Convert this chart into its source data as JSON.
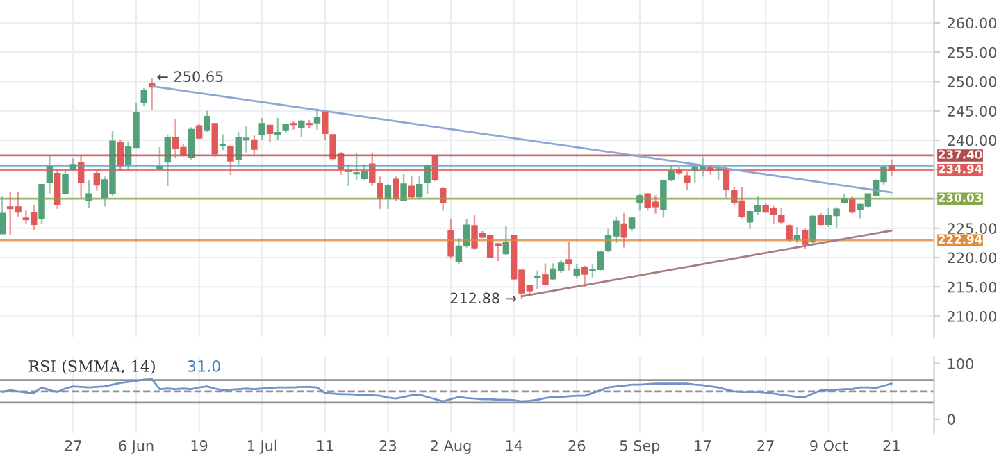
{
  "chart_data": [
    {
      "type": "candlestick",
      "categories": [
        null,
        null,
        null,
        null,
        null,
        null,
        null,
        null,
        null,
        null,
        null,
        null,
        null,
        null,
        null,
        null,
        null,
        null,
        null,
        null,
        null,
        null,
        null,
        null,
        null,
        null,
        null,
        null,
        null,
        null,
        null,
        null,
        null,
        null,
        null,
        null,
        null,
        null,
        null,
        null,
        null,
        null,
        null,
        null,
        null,
        null,
        null,
        null,
        null,
        null,
        null,
        null,
        null,
        null,
        null,
        null,
        null,
        null,
        null,
        null,
        null,
        null,
        null,
        null,
        null,
        null,
        null,
        null,
        null,
        null,
        null,
        null,
        null,
        null,
        null,
        null,
        null,
        null,
        null,
        null,
        null,
        null,
        null,
        null,
        null,
        null,
        null,
        null,
        null,
        null,
        null,
        null,
        null,
        null,
        null,
        null,
        null,
        null,
        null,
        null,
        null,
        null,
        null,
        null,
        null,
        null,
        null,
        null,
        null,
        null,
        null,
        null,
        null,
        null
      ],
      "ohlc": [
        [
          224.1,
          230.4,
          224.1,
          227.5
        ],
        [
          228.6,
          231.2,
          223.9,
          228.4
        ],
        [
          228.6,
          231.2,
          227.0,
          227.8
        ],
        [
          226.7,
          228.0,
          225.7,
          226.5
        ],
        [
          227.6,
          229.0,
          224.6,
          225.7
        ],
        [
          226.7,
          232.4,
          225.7,
          232.4
        ],
        [
          232.9,
          237.4,
          230.8,
          235.5
        ],
        [
          234.3,
          235.1,
          228.3,
          229.0
        ],
        [
          230.9,
          234.9,
          230.8,
          234.1
        ],
        [
          235.0,
          236.9,
          234.7,
          235.8
        ],
        [
          236.1,
          237.4,
          230.2,
          232.9
        ],
        [
          229.8,
          233.2,
          228.4,
          230.8
        ],
        [
          234.3,
          234.9,
          231.4,
          232.4
        ],
        [
          230.3,
          233.8,
          228.7,
          233.2
        ],
        [
          230.9,
          241.6,
          230.4,
          239.8
        ],
        [
          239.6,
          240.1,
          234.7,
          235.7
        ],
        [
          235.9,
          239.8,
          234.9,
          238.8
        ],
        [
          238.8,
          246.4,
          238.8,
          244.7
        ],
        [
          246.4,
          248.9,
          245.8,
          248.4
        ],
        [
          249.7,
          250.65,
          245.1,
          249.1
        ],
        [
          235.2,
          238.8,
          234.9,
          235.5
        ],
        [
          236.3,
          241.0,
          232.2,
          240.4
        ],
        [
          240.4,
          243.6,
          236.9,
          238.7
        ],
        [
          238.7,
          239.3,
          237.2,
          237.5
        ],
        [
          237.1,
          242.2,
          236.7,
          241.8
        ],
        [
          242.4,
          242.8,
          240.2,
          240.4
        ],
        [
          241.8,
          245.0,
          241.4,
          244.0
        ],
        [
          242.8,
          242.8,
          237.2,
          237.7
        ],
        [
          239.1,
          241.0,
          238.3,
          239.2
        ],
        [
          238.8,
          239.1,
          234.1,
          236.5
        ],
        [
          236.8,
          241.4,
          235.7,
          240.4
        ],
        [
          240.1,
          242.4,
          237.9,
          240.3
        ],
        [
          240.0,
          240.8,
          237.6,
          238.5
        ],
        [
          241.0,
          243.8,
          240.1,
          242.8
        ],
        [
          242.5,
          242.6,
          239.6,
          241.2
        ],
        [
          241.0,
          243.8,
          240.1,
          241.3
        ],
        [
          241.8,
          242.8,
          241.2,
          242.6
        ],
        [
          242.8,
          243.2,
          241.8,
          242.7
        ],
        [
          242.2,
          243.4,
          240.6,
          243.2
        ],
        [
          242.8,
          243.4,
          242.0,
          242.7
        ],
        [
          243.0,
          245.4,
          241.8,
          243.8
        ],
        [
          244.6,
          244.8,
          240.1,
          241.2
        ],
        [
          240.9,
          241.0,
          236.5,
          236.9
        ],
        [
          237.6,
          238.0,
          234.1,
          235.1
        ],
        [
          234.7,
          235.9,
          232.2,
          234.8
        ],
        [
          234.3,
          237.9,
          233.3,
          234.4
        ],
        [
          233.5,
          235.9,
          233.2,
          234.6
        ],
        [
          235.9,
          237.9,
          232.2,
          232.8
        ],
        [
          232.6,
          233.8,
          228.3,
          230.2
        ],
        [
          230.2,
          232.5,
          228.3,
          232.2
        ],
        [
          233.3,
          233.8,
          229.6,
          230.2
        ],
        [
          229.8,
          234.3,
          229.6,
          232.5
        ],
        [
          232.1,
          233.9,
          230.0,
          230.4
        ],
        [
          230.4,
          233.9,
          230.0,
          232.4
        ],
        [
          232.9,
          235.9,
          230.8,
          235.7
        ],
        [
          237.2,
          237.5,
          233.0,
          233.3
        ],
        [
          231.7,
          232.0,
          228.0,
          229.4
        ],
        [
          224.5,
          226.5,
          219.8,
          220.3
        ],
        [
          219.4,
          223.3,
          218.8,
          221.9
        ],
        [
          222.1,
          226.5,
          221.7,
          225.5
        ],
        [
          225.4,
          227.2,
          221.3,
          221.7
        ],
        [
          224.1,
          224.5,
          223.3,
          223.5
        ],
        [
          223.7,
          223.7,
          219.9,
          220.1
        ],
        [
          222.3,
          222.5,
          219.4,
          222.1
        ],
        [
          220.7,
          225.4,
          220.5,
          222.5
        ],
        [
          223.7,
          223.7,
          216.2,
          216.4
        ],
        [
          217.8,
          218.0,
          212.88,
          214.0
        ],
        [
          215.2,
          215.4,
          213.4,
          214.4
        ],
        [
          216.6,
          217.8,
          214.6,
          216.8
        ],
        [
          217.0,
          219.0,
          215.2,
          215.4
        ],
        [
          216.4,
          219.0,
          216.2,
          218.0
        ],
        [
          217.8,
          219.6,
          217.4,
          219.0
        ],
        [
          219.6,
          222.7,
          217.8,
          219.0
        ],
        [
          217.0,
          218.8,
          216.4,
          218.0
        ],
        [
          218.3,
          218.6,
          215.0,
          217.2
        ],
        [
          217.8,
          218.8,
          216.6,
          217.9
        ],
        [
          218.0,
          221.2,
          217.8,
          220.9
        ],
        [
          221.3,
          224.9,
          220.9,
          223.7
        ],
        [
          223.7,
          227.0,
          222.5,
          226.2
        ],
        [
          225.7,
          227.6,
          221.7,
          223.5
        ],
        [
          225.0,
          227.0,
          224.5,
          226.7
        ],
        [
          229.4,
          230.8,
          228.0,
          230.5
        ],
        [
          230.8,
          230.9,
          228.0,
          228.6
        ],
        [
          229.4,
          230.6,
          227.5,
          228.7
        ],
        [
          228.3,
          233.3,
          226.8,
          233.0
        ],
        [
          233.3,
          235.7,
          233.0,
          234.7
        ],
        [
          234.9,
          235.4,
          234.1,
          234.5
        ],
        [
          233.9,
          234.6,
          231.6,
          232.8
        ],
        [
          234.9,
          235.7,
          232.8,
          235.4
        ],
        [
          235.1,
          237.1,
          233.8,
          235.7
        ],
        [
          235.4,
          235.7,
          234.1,
          234.9
        ],
        [
          235.0,
          235.5,
          233.1,
          235.1
        ],
        [
          235.1,
          235.5,
          230.2,
          231.7
        ],
        [
          231.4,
          232.0,
          229.0,
          229.4
        ],
        [
          229.6,
          232.0,
          226.7,
          227.0
        ],
        [
          226.1,
          228.0,
          224.9,
          227.8
        ],
        [
          227.9,
          230.4,
          227.2,
          228.8
        ],
        [
          228.8,
          229.2,
          227.6,
          227.8
        ],
        [
          228.3,
          228.8,
          225.7,
          227.4
        ],
        [
          227.2,
          228.4,
          225.7,
          226.1
        ],
        [
          225.4,
          225.7,
          222.7,
          223.1
        ],
        [
          223.1,
          225.2,
          222.5,
          223.7
        ],
        [
          224.5,
          224.9,
          221.5,
          222.3
        ],
        [
          222.7,
          227.2,
          222.3,
          227.0
        ],
        [
          227.2,
          227.6,
          225.4,
          225.7
        ],
        [
          225.7,
          228.4,
          225.2,
          227.2
        ],
        [
          227.2,
          228.6,
          225.1,
          228.2
        ],
        [
          229.4,
          230.9,
          229.2,
          230.0
        ],
        [
          230.0,
          230.4,
          227.5,
          227.8
        ],
        [
          228.3,
          229.2,
          226.7,
          229.0
        ],
        [
          228.8,
          230.9,
          228.6,
          230.8
        ],
        [
          230.6,
          233.3,
          230.4,
          233.1
        ],
        [
          233.0,
          235.7,
          232.4,
          235.4
        ],
        [
          235.7,
          236.7,
          233.8,
          234.94
        ]
      ],
      "series": [
        {
          "type": "line",
          "color": "#8ea6d6",
          "values": [
            null,
            null,
            null,
            null,
            null,
            null,
            null,
            null,
            null,
            null,
            null,
            null,
            null,
            null,
            null,
            null,
            null,
            null,
            null,
            249.2,
            null,
            null,
            null,
            null,
            null,
            null,
            null,
            null,
            null,
            null,
            null,
            null,
            null,
            null,
            null,
            null,
            null,
            null,
            null,
            null,
            null,
            null,
            null,
            null,
            null,
            null,
            null,
            null,
            null,
            null,
            null,
            null,
            null,
            null,
            null,
            null,
            null,
            null,
            null,
            null,
            null,
            null,
            null,
            null,
            null,
            null,
            null,
            null,
            null,
            null,
            null,
            null,
            null,
            null,
            null,
            null,
            null,
            null,
            null,
            null,
            null,
            null,
            null,
            null,
            null,
            null,
            null,
            null,
            null,
            null,
            null,
            null,
            null,
            null,
            null,
            null,
            null,
            null,
            null,
            null,
            null,
            null,
            null,
            null,
            null,
            null,
            null,
            null,
            null,
            null,
            null,
            null,
            null,
            231.1
          ]
        },
        {
          "type": "line",
          "color": "#a67c7c",
          "values": [
            null,
            null,
            null,
            null,
            null,
            null,
            null,
            null,
            null,
            null,
            null,
            null,
            null,
            null,
            null,
            null,
            null,
            null,
            null,
            null,
            null,
            null,
            null,
            null,
            null,
            null,
            null,
            null,
            null,
            null,
            null,
            null,
            null,
            null,
            null,
            null,
            null,
            null,
            null,
            null,
            null,
            null,
            null,
            null,
            null,
            null,
            null,
            null,
            null,
            null,
            null,
            null,
            null,
            null,
            null,
            null,
            null,
            null,
            null,
            null,
            null,
            null,
            null,
            null,
            null,
            null,
            213.4,
            null,
            null,
            null,
            null,
            null,
            null,
            null,
            null,
            null,
            null,
            null,
            null,
            null,
            null,
            null,
            null,
            null,
            null,
            null,
            null,
            null,
            null,
            null,
            null,
            null,
            null,
            null,
            null,
            null,
            null,
            null,
            null,
            null,
            null,
            null,
            null,
            null,
            null,
            null,
            null,
            null,
            null,
            null,
            null,
            null,
            null,
            224.6
          ]
        }
      ],
      "ylim": [
        206.4,
        263.9
      ],
      "yticks": [
        {
          "value": 210,
          "label": "210.00"
        },
        {
          "value": 215,
          "label": "215.00"
        },
        {
          "value": 220,
          "label": "220.00"
        },
        {
          "value": 225,
          "label": "225.00"
        },
        {
          "value": 230,
          "label": null
        },
        {
          "value": 235,
          "label": null
        },
        {
          "value": 240,
          "label": "240.00"
        },
        {
          "value": 245,
          "label": "245.00"
        },
        {
          "value": 250,
          "label": "250.00"
        },
        {
          "value": 255,
          "label": "255.00"
        },
        {
          "value": 260,
          "label": "260.00"
        }
      ],
      "ref_lines": [
        {
          "axis": "y",
          "value": 237.4,
          "label": "237.40",
          "color": "#b04c4c"
        },
        {
          "axis": "y",
          "value": 235.7,
          "label": null,
          "color": "#4f9fbf"
        },
        {
          "axis": "y",
          "value": 234.94,
          "label": "234.94",
          "color": "#e05a5a"
        },
        {
          "axis": "y",
          "value": 230.03,
          "label": "230.03",
          "color": "#8aa64a"
        },
        {
          "axis": "y",
          "value": 222.94,
          "label": "222.94",
          "color": "#e08a3c"
        }
      ],
      "annotations": [
        "← 250.65",
        "212.88 →"
      ],
      "grid": true,
      "tick_labels": "y"
    },
    {
      "type": "line",
      "title": "RSI (SMMA, 14)",
      "categories": [
        null,
        null,
        null,
        null,
        null,
        null,
        null,
        null,
        null,
        "27",
        null,
        null,
        null,
        null,
        null,
        null,
        null,
        "6 Jun",
        null,
        null,
        null,
        null,
        null,
        null,
        null,
        "19",
        null,
        null,
        null,
        null,
        null,
        null,
        null,
        "1 Jul",
        null,
        null,
        null,
        null,
        null,
        null,
        null,
        "11",
        null,
        null,
        null,
        null,
        null,
        null,
        null,
        "23",
        null,
        null,
        null,
        null,
        null,
        null,
        null,
        "2 Aug",
        null,
        null,
        null,
        null,
        null,
        null,
        null,
        "14",
        null,
        null,
        null,
        null,
        null,
        null,
        null,
        "26",
        null,
        null,
        null,
        null,
        null,
        null,
        null,
        "5 Sep",
        null,
        null,
        null,
        null,
        null,
        null,
        null,
        "17",
        null,
        null,
        null,
        null,
        null,
        null,
        null,
        "27",
        null,
        null,
        null,
        null,
        null,
        null,
        null,
        "9 Oct",
        null,
        null,
        null,
        null,
        null,
        null,
        null,
        "21"
      ],
      "series": [
        {
          "color": "#6f93c9",
          "values": [
            49,
            52,
            50,
            48,
            47,
            57,
            52,
            49,
            55,
            59,
            58,
            57,
            58,
            59,
            62,
            65,
            67,
            69,
            71,
            72,
            54,
            55,
            54,
            55,
            54,
            57,
            59,
            55,
            52,
            53,
            54,
            55,
            54,
            55,
            56,
            57,
            57,
            57,
            58,
            58,
            57,
            47,
            46,
            45,
            45,
            44,
            44,
            43,
            42,
            39,
            37,
            40,
            43,
            44,
            40,
            36,
            32,
            36,
            40,
            38,
            37,
            36,
            36,
            35,
            35,
            34,
            32,
            33,
            35,
            38,
            40,
            40,
            41,
            42,
            42,
            47,
            52,
            57,
            59,
            60,
            62,
            62,
            63,
            64,
            64,
            64,
            64,
            64,
            62,
            61,
            59,
            57,
            53,
            50,
            49,
            49,
            49,
            48,
            46,
            44,
            42,
            40,
            40,
            46,
            52,
            52,
            53,
            54,
            54,
            57,
            57,
            56,
            60,
            64
          ]
        }
      ],
      "ylim": [
        -25,
        112
      ],
      "yticks": [
        0,
        100
      ],
      "ref_lines": [
        {
          "axis": "y",
          "value": 70,
          "label": null,
          "color": "#777777",
          "line_style": "solid"
        },
        {
          "axis": "y",
          "value": 30,
          "label": null,
          "color": "#777777",
          "line_style": "solid"
        },
        {
          "axis": "y",
          "value": 50,
          "label": null,
          "color": "#777777",
          "line_style": "dashed"
        }
      ],
      "annotations": [
        "31.0"
      ],
      "grid": "x"
    }
  ]
}
